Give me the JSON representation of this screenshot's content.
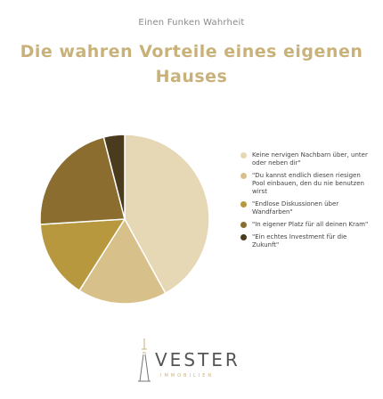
{
  "kicker": "Einen Funken Wahrheit",
  "title": "Die wahren Vorteile eines eigenen Hauses",
  "chart_data": {
    "type": "pie",
    "title": "Die wahren Vorteile eines eigenen Hauses",
    "labels": [
      "Keine nervigen Nachbarn über, unter oder neben dir\"",
      "\"Du kannst endlich diesen riesigen Pool einbauen, den du nie benutzen wirst",
      "\"Endlose Diskussionen über Wandfarben\"",
      "\"In eigener Platz für all deinen Kram\"",
      "\"Ein echtes Investment für die Zukunft\""
    ],
    "values": [
      42,
      17,
      15,
      22,
      4
    ],
    "colors": [
      "#e6d8b5",
      "#d8c08a",
      "#b8983f",
      "#8a6d2f",
      "#4a3a1e"
    ],
    "legend": "right"
  },
  "logo": {
    "wordmark": "VESTER",
    "subtitle": "IMMOBILIEN"
  }
}
